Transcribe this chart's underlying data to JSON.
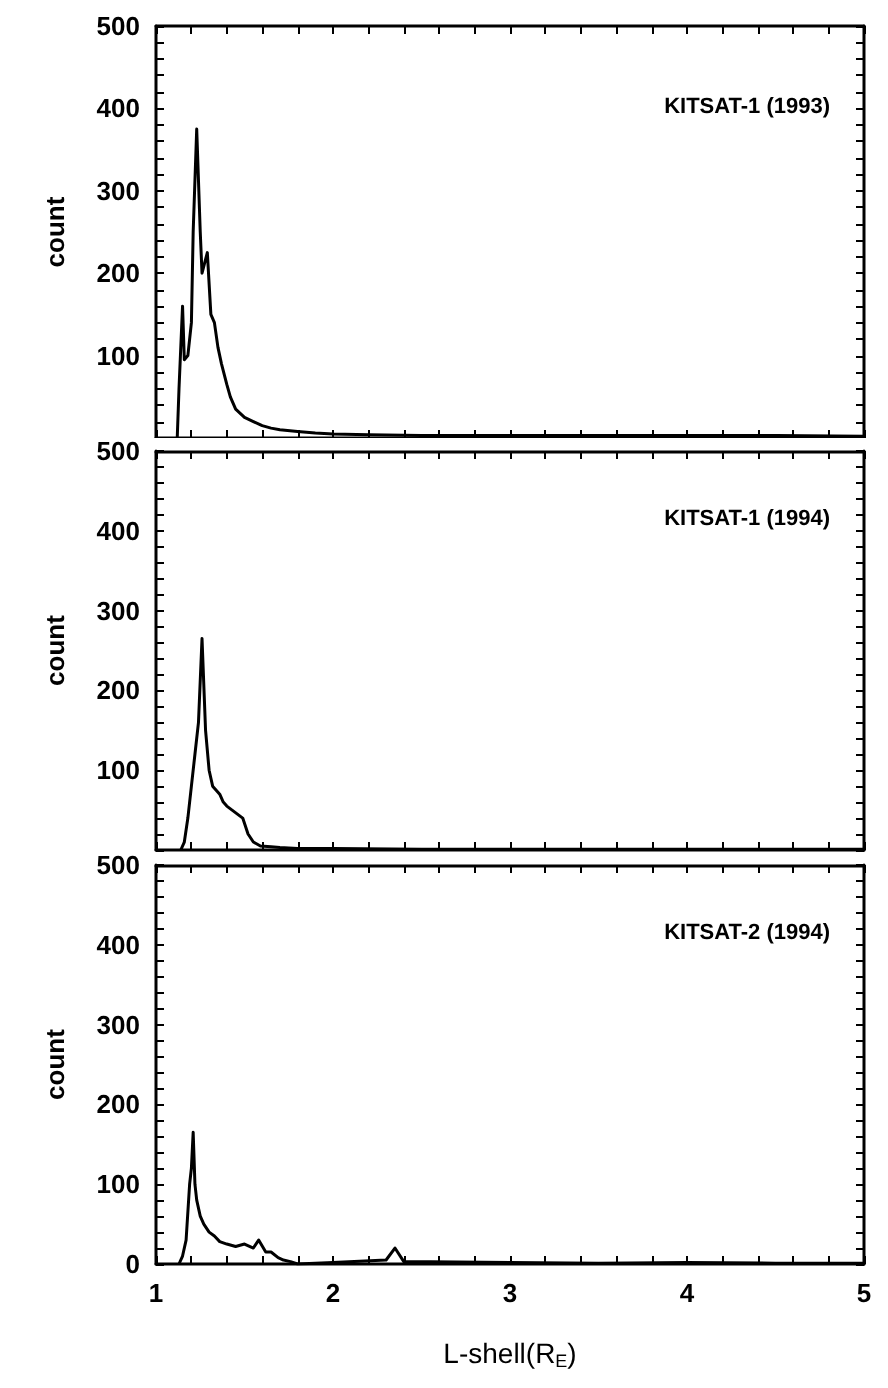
{
  "chart_data": [
    {
      "type": "line",
      "title": "KITSAT-1 (1993)",
      "ylabel": "count",
      "tick_labels": "y",
      "grid": false,
      "marker": "none",
      "line_style": "solid",
      "xlim": [
        1,
        5
      ],
      "xticks": [
        1,
        {
          "value": 1.2,
          "label": null
        },
        {
          "value": 1.4,
          "label": null
        },
        {
          "value": 1.6,
          "label": null
        },
        {
          "value": 1.8,
          "label": null
        },
        2,
        {
          "value": 2.2,
          "label": null
        },
        {
          "value": 2.4,
          "label": null
        },
        {
          "value": 2.6,
          "label": null
        },
        {
          "value": 2.8,
          "label": null
        },
        3,
        {
          "value": 3.2,
          "label": null
        },
        {
          "value": 3.4,
          "label": null
        },
        {
          "value": 3.6,
          "label": null
        },
        {
          "value": 3.8,
          "label": null
        },
        4,
        {
          "value": 4.2,
          "label": null
        },
        {
          "value": 4.4,
          "label": null
        },
        {
          "value": 4.6,
          "label": null
        },
        {
          "value": 4.8,
          "label": null
        },
        5
      ],
      "ylim": [
        0,
        500
      ],
      "yticks": [
        {
          "value": 0,
          "label": null
        },
        {
          "value": 20,
          "label": null
        },
        {
          "value": 40,
          "label": null
        },
        {
          "value": 60,
          "label": null
        },
        {
          "value": 80,
          "label": null
        },
        100,
        {
          "value": 120,
          "label": null
        },
        {
          "value": 140,
          "label": null
        },
        {
          "value": 160,
          "label": null
        },
        {
          "value": 180,
          "label": null
        },
        200,
        {
          "value": 220,
          "label": null
        },
        {
          "value": 240,
          "label": null
        },
        {
          "value": 260,
          "label": null
        },
        {
          "value": 280,
          "label": null
        },
        300,
        {
          "value": 320,
          "label": null
        },
        {
          "value": 340,
          "label": null
        },
        {
          "value": 360,
          "label": null
        },
        {
          "value": 380,
          "label": null
        },
        400,
        {
          "value": 420,
          "label": null
        },
        {
          "value": 440,
          "label": null
        },
        {
          "value": 460,
          "label": null
        },
        {
          "value": 480,
          "label": null
        },
        500
      ],
      "series": [
        {
          "color": "#000000",
          "x": [
            1.12,
            1.13,
            1.15,
            1.16,
            1.18,
            1.2,
            1.21,
            1.23,
            1.25,
            1.26,
            1.29,
            1.31,
            1.33,
            1.35,
            1.37,
            1.4,
            1.42,
            1.45,
            1.5,
            1.55,
            1.6,
            1.65,
            1.7,
            1.8,
            1.9,
            2.0,
            2.2,
            2.5,
            3.0,
            3.5,
            4.0,
            4.5,
            5.0
          ],
          "values": [
            0,
            60,
            160,
            95,
            100,
            140,
            250,
            375,
            250,
            200,
            225,
            150,
            140,
            110,
            90,
            65,
            50,
            35,
            25,
            20,
            15,
            12,
            10,
            8,
            6,
            5,
            4,
            3,
            3,
            3,
            3,
            3,
            2
          ]
        }
      ]
    },
    {
      "type": "line",
      "title": "KITSAT-1 (1994)",
      "ylabel": "count",
      "tick_labels": "y",
      "grid": false,
      "marker": "none",
      "line_style": "solid",
      "xlim": [
        1,
        5
      ],
      "xticks": [
        1,
        {
          "value": 1.2,
          "label": null
        },
        {
          "value": 1.4,
          "label": null
        },
        {
          "value": 1.6,
          "label": null
        },
        {
          "value": 1.8,
          "label": null
        },
        2,
        {
          "value": 2.2,
          "label": null
        },
        {
          "value": 2.4,
          "label": null
        },
        {
          "value": 2.6,
          "label": null
        },
        {
          "value": 2.8,
          "label": null
        },
        3,
        {
          "value": 3.2,
          "label": null
        },
        {
          "value": 3.4,
          "label": null
        },
        {
          "value": 3.6,
          "label": null
        },
        {
          "value": 3.8,
          "label": null
        },
        4,
        {
          "value": 4.2,
          "label": null
        },
        {
          "value": 4.4,
          "label": null
        },
        {
          "value": 4.6,
          "label": null
        },
        {
          "value": 4.8,
          "label": null
        },
        5
      ],
      "ylim": [
        0,
        500
      ],
      "yticks": [
        {
          "value": 0,
          "label": null
        },
        {
          "value": 20,
          "label": null
        },
        {
          "value": 40,
          "label": null
        },
        {
          "value": 60,
          "label": null
        },
        {
          "value": 80,
          "label": null
        },
        100,
        {
          "value": 120,
          "label": null
        },
        {
          "value": 140,
          "label": null
        },
        {
          "value": 160,
          "label": null
        },
        {
          "value": 180,
          "label": null
        },
        200,
        {
          "value": 220,
          "label": null
        },
        {
          "value": 240,
          "label": null
        },
        {
          "value": 260,
          "label": null
        },
        {
          "value": 280,
          "label": null
        },
        300,
        {
          "value": 320,
          "label": null
        },
        {
          "value": 340,
          "label": null
        },
        {
          "value": 360,
          "label": null
        },
        {
          "value": 380,
          "label": null
        },
        400,
        {
          "value": 420,
          "label": null
        },
        {
          "value": 440,
          "label": null
        },
        {
          "value": 460,
          "label": null
        },
        {
          "value": 480,
          "label": null
        },
        500
      ],
      "series": [
        {
          "color": "#000000",
          "x": [
            1.14,
            1.16,
            1.18,
            1.2,
            1.22,
            1.24,
            1.26,
            1.28,
            1.3,
            1.32,
            1.34,
            1.36,
            1.38,
            1.4,
            1.43,
            1.46,
            1.49,
            1.52,
            1.55,
            1.59,
            1.65,
            1.7,
            1.8,
            2.0,
            2.5,
            3.0,
            3.5,
            4.0,
            4.5,
            5.0
          ],
          "values": [
            0,
            10,
            40,
            80,
            120,
            160,
            265,
            150,
            100,
            80,
            75,
            70,
            60,
            55,
            50,
            45,
            40,
            20,
            10,
            5,
            4,
            3,
            2,
            2,
            1,
            1,
            1,
            1,
            1,
            1
          ]
        }
      ]
    },
    {
      "type": "line",
      "title": "KITSAT-2 (1994)",
      "xlabel": "L-shell(R$_{E}$)",
      "ylabel": "count",
      "grid": false,
      "marker": "none",
      "line_style": "solid",
      "xlim": [
        1,
        5
      ],
      "xticks": [
        1,
        {
          "value": 1.2,
          "label": null
        },
        {
          "value": 1.4,
          "label": null
        },
        {
          "value": 1.6,
          "label": null
        },
        {
          "value": 1.8,
          "label": null
        },
        2,
        {
          "value": 2.2,
          "label": null
        },
        {
          "value": 2.4,
          "label": null
        },
        {
          "value": 2.6,
          "label": null
        },
        {
          "value": 2.8,
          "label": null
        },
        3,
        {
          "value": 3.2,
          "label": null
        },
        {
          "value": 3.4,
          "label": null
        },
        {
          "value": 3.6,
          "label": null
        },
        {
          "value": 3.8,
          "label": null
        },
        4,
        {
          "value": 4.2,
          "label": null
        },
        {
          "value": 4.4,
          "label": null
        },
        {
          "value": 4.6,
          "label": null
        },
        {
          "value": 4.8,
          "label": null
        },
        5
      ],
      "ylim": [
        0,
        500
      ],
      "yticks": [
        0,
        {
          "value": 20,
          "label": null
        },
        {
          "value": 40,
          "label": null
        },
        {
          "value": 60,
          "label": null
        },
        {
          "value": 80,
          "label": null
        },
        100,
        {
          "value": 120,
          "label": null
        },
        {
          "value": 140,
          "label": null
        },
        {
          "value": 160,
          "label": null
        },
        {
          "value": 180,
          "label": null
        },
        200,
        {
          "value": 220,
          "label": null
        },
        {
          "value": 240,
          "label": null
        },
        {
          "value": 260,
          "label": null
        },
        {
          "value": 280,
          "label": null
        },
        300,
        {
          "value": 320,
          "label": null
        },
        {
          "value": 340,
          "label": null
        },
        {
          "value": 360,
          "label": null
        },
        {
          "value": 380,
          "label": null
        },
        400,
        {
          "value": 420,
          "label": null
        },
        {
          "value": 440,
          "label": null
        },
        {
          "value": 460,
          "label": null
        },
        {
          "value": 480,
          "label": null
        },
        500
      ],
      "series": [
        {
          "color": "#000000",
          "x": [
            1.13,
            1.15,
            1.17,
            1.19,
            1.2,
            1.21,
            1.22,
            1.23,
            1.25,
            1.27,
            1.3,
            1.33,
            1.36,
            1.4,
            1.45,
            1.5,
            1.55,
            1.58,
            1.62,
            1.65,
            1.69,
            1.72,
            1.76,
            1.8,
            2.0,
            2.3,
            2.35,
            2.4,
            3.0,
            3.5,
            4.0,
            4.5,
            5.0
          ],
          "values": [
            0,
            10,
            30,
            100,
            120,
            165,
            100,
            80,
            60,
            50,
            40,
            35,
            28,
            25,
            22,
            25,
            20,
            30,
            15,
            15,
            8,
            5,
            3,
            0,
            2,
            5,
            20,
            3,
            2,
            1,
            2,
            1,
            1
          ]
        }
      ]
    }
  ]
}
